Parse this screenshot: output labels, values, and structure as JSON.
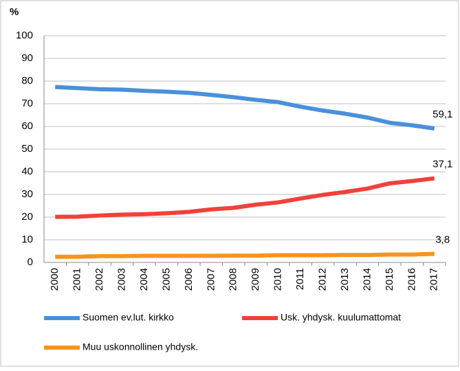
{
  "chart_data": {
    "type": "line",
    "y_label": "%",
    "categories": [
      "2000",
      "2001",
      "2002",
      "2003",
      "2004",
      "2005",
      "2006",
      "2007",
      "2008",
      "2009",
      "2010",
      "2011",
      "2012",
      "2013",
      "2014",
      "2015",
      "2016",
      "2017"
    ],
    "series": [
      {
        "name": "Suomen ev.lut. kirkko",
        "color": "#4a90d9",
        "values": [
          77.4,
          76.9,
          76.4,
          76.2,
          75.7,
          75.3,
          74.8,
          73.9,
          72.9,
          71.7,
          70.7,
          68.7,
          67.0,
          65.6,
          63.9,
          61.6,
          60.5,
          59.1
        ],
        "value_labels": [
          null,
          null,
          null,
          null,
          null,
          null,
          null,
          null,
          null,
          null,
          null,
          null,
          null,
          null,
          null,
          null,
          null,
          "59,1"
        ]
      },
      {
        "name": "Usk. yhdysk. kuulumattomat",
        "color": "#f0413a",
        "values": [
          20.1,
          20.2,
          20.7,
          21.1,
          21.3,
          21.7,
          22.3,
          23.4,
          24.1,
          25.5,
          26.5,
          28.2,
          29.8,
          31.1,
          32.6,
          34.9,
          35.9,
          37.1
        ],
        "value_labels": [
          null,
          null,
          null,
          null,
          null,
          null,
          null,
          null,
          null,
          null,
          null,
          null,
          null,
          null,
          null,
          null,
          null,
          "37,1"
        ]
      },
      {
        "name": "Muu uskonnollinen yhdysk.",
        "color": "#f7941d",
        "values": [
          2.5,
          2.5,
          2.8,
          2.8,
          2.9,
          2.9,
          2.9,
          2.9,
          3.0,
          3.0,
          3.2,
          3.2,
          3.2,
          3.3,
          3.3,
          3.5,
          3.5,
          3.8
        ],
        "value_labels": [
          null,
          null,
          null,
          null,
          null,
          null,
          null,
          null,
          null,
          null,
          null,
          null,
          null,
          null,
          null,
          null,
          null,
          "3,8"
        ]
      }
    ],
    "ylim": [
      0,
      100
    ],
    "yticks": [
      0,
      10,
      20,
      30,
      40,
      50,
      60,
      70,
      80,
      90,
      100
    ],
    "grid": true,
    "legend": "bottom"
  }
}
